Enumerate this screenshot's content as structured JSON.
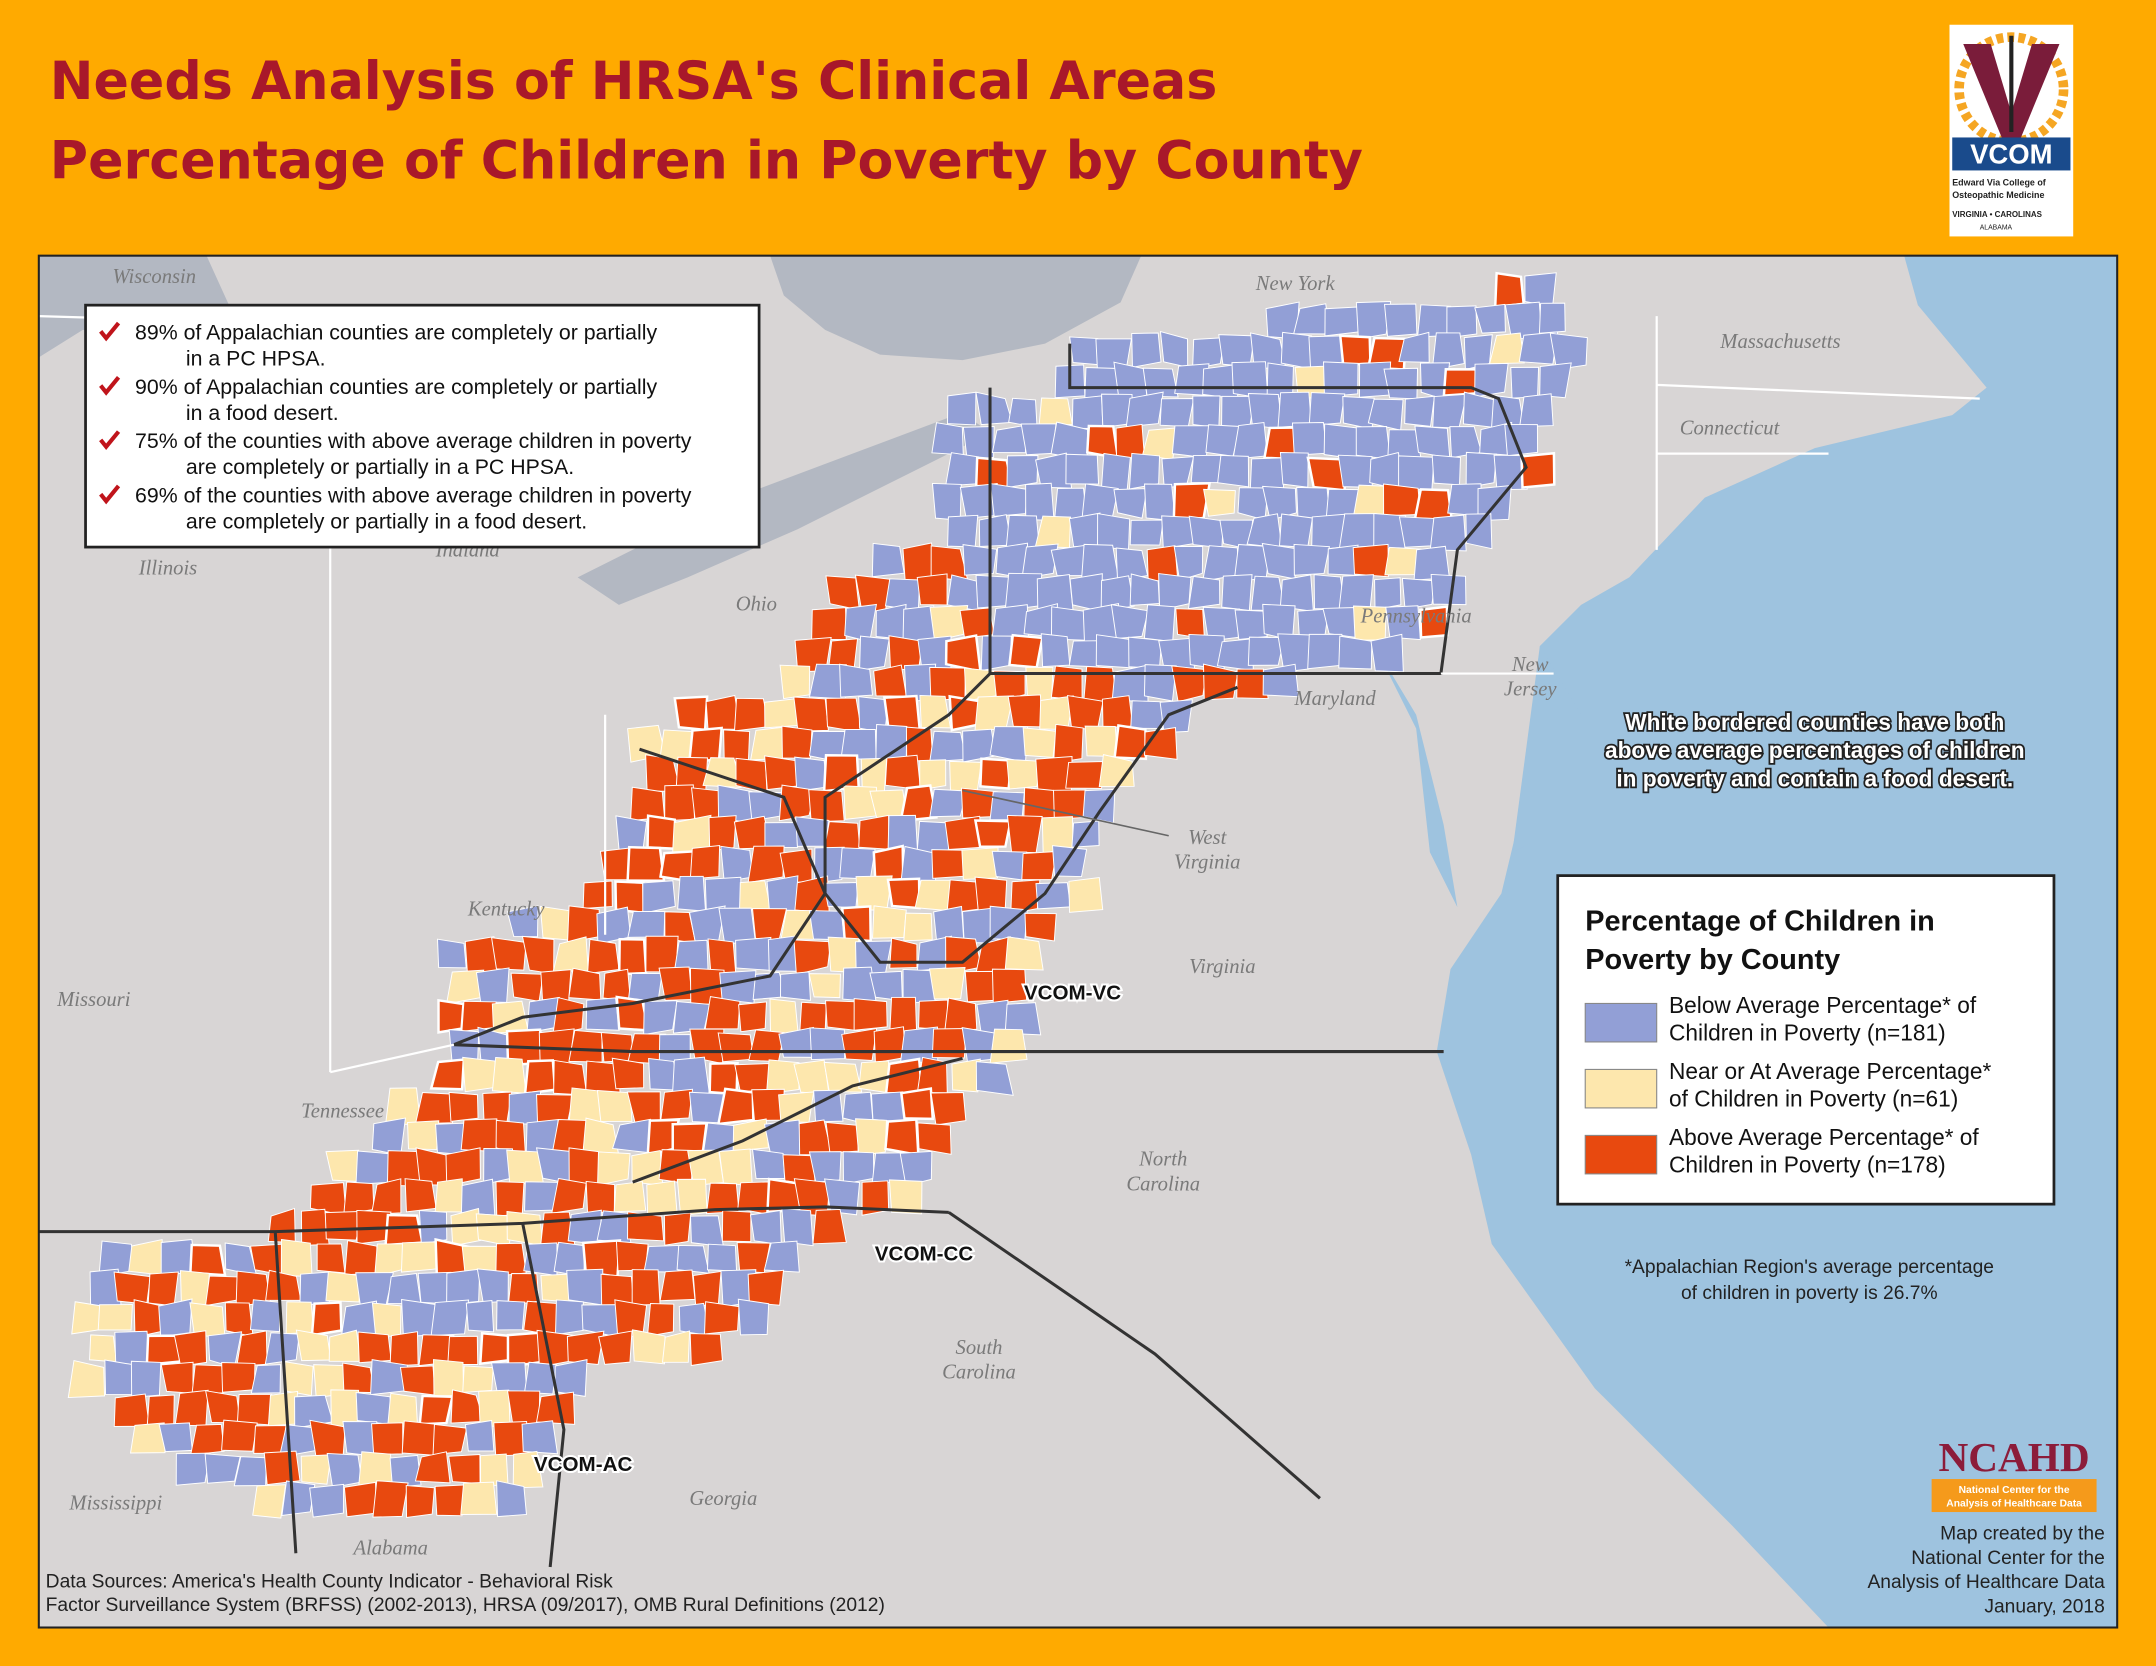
{
  "header": {
    "title_lines": [
      "Needs Analysis of HRSA's Clinical Areas",
      "Percentage of Children in Poverty by County"
    ]
  },
  "logo": {
    "name": "VCOM",
    "lines": [
      "Edward Via College of",
      "Osteopathic Medicine",
      "VIRGINIA • CAROLINAS",
      "ALABAMA"
    ]
  },
  "notes": [
    {
      "lines": [
        "89% of Appalachian counties are completely or partially",
        "in a PC HPSA."
      ]
    },
    {
      "lines": [
        "90% of Appalachian counties are completely or partially",
        "in a food desert."
      ]
    },
    {
      "lines": [
        "75% of the counties with above average children in poverty",
        "are completely or partially in a PC HPSA."
      ]
    },
    {
      "lines": [
        "69% of the counties with above average children in poverty",
        "are completely or partially in a food desert."
      ]
    }
  ],
  "state_labels": [
    {
      "lines": [
        "Wisconsin"
      ]
    },
    {
      "lines": [
        "New York"
      ]
    },
    {
      "lines": [
        "Massachusetts"
      ]
    },
    {
      "lines": [
        "Connecticut"
      ]
    },
    {
      "lines": [
        "Illinois"
      ]
    },
    {
      "lines": [
        "Indiana"
      ]
    },
    {
      "lines": [
        "Ohio"
      ]
    },
    {
      "lines": [
        "Pennsylvania"
      ]
    },
    {
      "lines": [
        "New",
        "Jersey"
      ]
    },
    {
      "lines": [
        "Maryland"
      ]
    },
    {
      "lines": [
        "West",
        "Virginia"
      ]
    },
    {
      "lines": [
        "Kentucky"
      ]
    },
    {
      "lines": [
        "Missouri"
      ]
    },
    {
      "lines": [
        "Virginia"
      ]
    },
    {
      "lines": [
        "Tennessee"
      ]
    },
    {
      "lines": [
        "North",
        "Carolina"
      ]
    },
    {
      "lines": [
        "South",
        "Carolina"
      ]
    },
    {
      "lines": [
        "Mississippi"
      ]
    },
    {
      "lines": [
        "Georgia"
      ]
    },
    {
      "lines": [
        "Alabama"
      ]
    }
  ],
  "campus_labels": [
    "VCOM-VC",
    "VCOM-CC",
    "VCOM-AC"
  ],
  "annotation": [
    "White bordered counties have both",
    "above average percentages of children",
    "in poverty and contain a food desert."
  ],
  "legend": {
    "title_lines": [
      "Percentage of Children in",
      "Poverty by County"
    ],
    "entries": [
      {
        "lines": [
          "Below Average Percentage* of",
          "Children in Poverty (n=181)"
        ],
        "color": "#929fd6"
      },
      {
        "lines": [
          "Near or At Average Percentage*",
          "of Children in Poverty (n=61)"
        ],
        "color": "#fde7ad"
      },
      {
        "lines": [
          "Above Average Percentage* of",
          "Children in Poverty (n=178)"
        ],
        "color": "#e8490f"
      }
    ]
  },
  "footnote": [
    "*Appalachian Region's average percentage",
    "of children in poverty is 26.7%"
  ],
  "sources": [
    "Data Sources: America's Health County Indicator - Behavioral Risk",
    "Factor Surveillance System (BRFSS) (2002-2013), HRSA (09/2017), OMB Rural Definitions (2012)"
  ],
  "credit": {
    "logo": "NCAHD",
    "logo_sub": [
      "National Center for the",
      "Analysis of Healthcare Data"
    ],
    "lines": [
      "Map created by the",
      "National Center for the",
      "Analysis of Healthcare Data",
      "January, 2018"
    ]
  }
}
